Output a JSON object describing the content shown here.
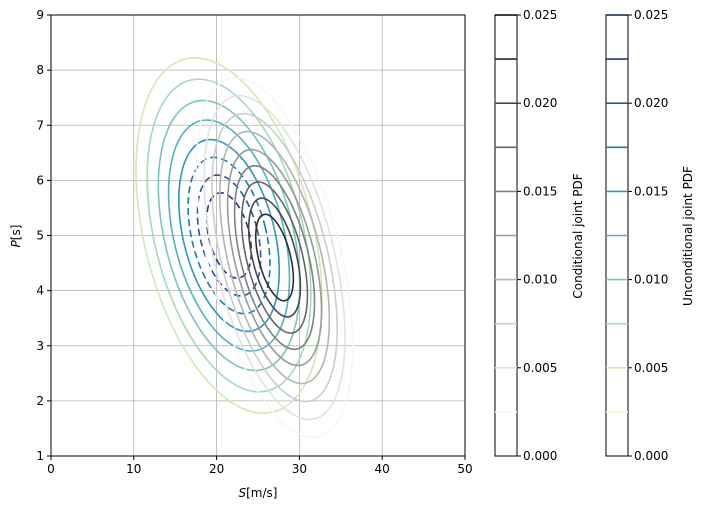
{
  "chart_data": {
    "type": "contour",
    "xlabel_base": "S",
    "xlabel_units": "[m/s]",
    "ylabel_base": "P",
    "ylabel_units": "[s]",
    "xlim": [
      0,
      50
    ],
    "ylim": [
      1,
      9
    ],
    "xticks": [
      "0",
      "10",
      "20",
      "30",
      "40",
      "50"
    ],
    "yticks": [
      "1",
      "2",
      "3",
      "4",
      "5",
      "6",
      "7",
      "8",
      "9"
    ],
    "grid": true,
    "unconditional": {
      "label": "Unconditional joint PDF",
      "center": [
        21.5,
        5.0
      ],
      "semi_axes": [
        10.2,
        3.3
      ],
      "levels": [
        0.0025,
        0.005,
        0.0075,
        0.01,
        0.0125,
        0.015,
        0.0175,
        0.02,
        0.0225,
        0.025
      ],
      "level_colors": [
        "#f1f9b7",
        "#cfeab4",
        "#a5dab7",
        "#76c7be",
        "#4db3c3",
        "#2d97c1",
        "#1f78b4",
        "#2457a4",
        "#253494",
        "#081d58"
      ],
      "contour_sizes": [
        1.0,
        0.88,
        0.76,
        0.65,
        0.54,
        0.44,
        0.34,
        0.24
      ]
    },
    "conditional": {
      "label": "Conditional joint PDF",
      "center": [
        27.0,
        4.6
      ],
      "semi_axes": [
        8.0,
        3.35
      ],
      "levels": [
        0.0025,
        0.005,
        0.0075,
        0.01,
        0.0125,
        0.015,
        0.0175,
        0.02,
        0.0225,
        0.025
      ],
      "level_colors": [
        "#f7f7f7",
        "#e2e2e2",
        "#cccccc",
        "#b4b4b4",
        "#9a9a9a",
        "#808080",
        "#666666",
        "#4a4a4a",
        "#2d2d2d",
        "#000000"
      ],
      "contour_sizes": [
        1.0,
        0.9,
        0.8,
        0.7,
        0.6,
        0.51,
        0.42,
        0.33,
        0.24
      ]
    },
    "colorbar_ticks": [
      "0.000",
      "0.005",
      "0.010",
      "0.015",
      "0.020",
      "0.025"
    ],
    "colorbar_range": [
      0,
      0.025
    ]
  }
}
